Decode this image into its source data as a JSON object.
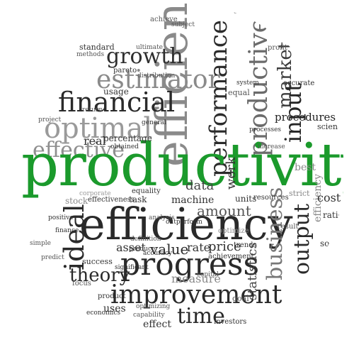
{
  "colors": {
    "accent_green": "#1b9a2c",
    "dark": "#1e1e1e",
    "mid": "#5b5b5b",
    "light": "#9a9a9a"
  },
  "words": {
    "productivity": "productivity",
    "efficient": "efficient",
    "efficiency": "efficiency",
    "progress": "progress",
    "improvement": "improvement",
    "optimal": "optimal",
    "financial": "financial",
    "effective_big": "effective",
    "estimator": "estimator",
    "growth": "growth",
    "performance": "performance",
    "productive": "productive",
    "business": "business",
    "output_right": "output",
    "input": "input",
    "ideal": "ideal",
    "amount": "amount",
    "theory": "theory",
    "time": "time",
    "value": "value",
    "procedures": "procedures",
    "market": "market",
    "efficiency_right": "efficiency",
    "statistics": "statistics",
    "work": "work",
    "data": "data",
    "machine": "machine",
    "units": "units",
    "resources": "resources",
    "measure": "measure",
    "rate": "rate",
    "price": "price",
    "achievement": "achievement",
    "asset": "asset",
    "uses": "uses",
    "effect": "effect",
    "investors": "investors",
    "capability": "capability",
    "cost": "cost",
    "ratio": "ratio",
    "science": "science",
    "percentage": "percentage",
    "real": "real",
    "usage": "usage",
    "effectiveness": "effectiveness",
    "task": "task",
    "stock": "stock",
    "trends": "trends",
    "produce": "produce",
    "accuracy": "accuracy",
    "processes": "processes",
    "equality": "equality",
    "general": "general",
    "pareto": "pareto",
    "ultimate": "ultimate",
    "optimizing": "optimizing",
    "product": "product",
    "goal": "goal",
    "predict": "predict",
    "project": "project",
    "source": "source",
    "strict": "strict",
    "result": "result",
    "methods": "methods",
    "analysis": "analysis",
    "definition": "definition",
    "achieve": "achieve",
    "standard": "standard",
    "subject": "subject",
    "economics": "economics",
    "success": "success",
    "factor": "factor",
    "finance": "finance",
    "outperform": "outperform",
    "focus": "focus",
    "accurate": "accurate",
    "profit": "profit",
    "return": "return",
    "best": "best",
    "obtained": "obtained",
    "significant": "significant",
    "positive": "positive",
    "simple": "simple",
    "corporate": "corporate",
    "distribution": "distribution",
    "equal": "equal",
    "engine": "engine",
    "increase": "increase",
    "system": "system",
    "optimize": "optimize",
    "capital": "capital"
  }
}
